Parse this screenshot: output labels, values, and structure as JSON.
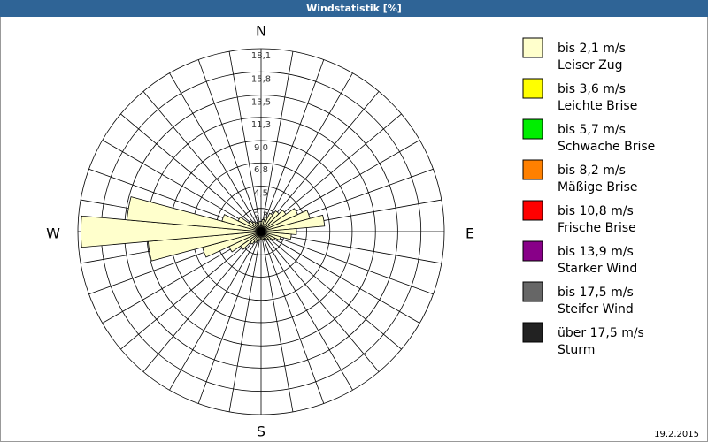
{
  "chart_data": {
    "type": "windrose",
    "title": "Windstatistik [%]",
    "directions": {
      "N": "N",
      "E": "E",
      "S": "S",
      "W": "W"
    },
    "x": [
      0,
      10,
      20,
      30,
      40,
      50,
      60,
      70,
      80,
      90,
      100,
      110,
      120,
      130,
      140,
      150,
      160,
      170,
      180,
      190,
      200,
      210,
      220,
      230,
      240,
      250,
      260,
      270,
      280,
      290,
      300,
      310,
      320,
      330,
      340,
      350
    ],
    "series": [
      {
        "name": "bis 2,1 m/s",
        "color": "#ffffcc",
        "values": [
          1.0,
          1.2,
          1.5,
          2.0,
          2.5,
          3.0,
          4.0,
          5.0,
          6.3,
          3.5,
          3.0,
          2.0,
          1.5,
          1.2,
          1.0,
          0.8,
          0.8,
          0.8,
          0.8,
          0.8,
          1.0,
          1.2,
          1.5,
          2.5,
          3.5,
          6.0,
          11.2,
          17.8,
          13.3,
          4.0,
          2.5,
          1.5,
          1.2,
          1.0,
          1.0,
          1.0
        ]
      }
    ],
    "legend": [
      {
        "range": "bis 2,1 m/s",
        "name": "Leiser Zug",
        "color": "#ffffcc"
      },
      {
        "range": "bis 3,6 m/s",
        "name": "Leichte Brise",
        "color": "#ffff00"
      },
      {
        "range": "bis 5,7 m/s",
        "name": "Schwache Brise",
        "color": "#00ee00"
      },
      {
        "range": "bis 8,2 m/s",
        "name": "Mäßige Brise",
        "color": "#ff8000"
      },
      {
        "range": "bis 10,8 m/s",
        "name": "Frische Brise",
        "color": "#ff0000"
      },
      {
        "range": "bis 13,9 m/s",
        "name": "Starker Wind",
        "color": "#880088"
      },
      {
        "range": "bis 17,5 m/s",
        "name": "Steifer Wind",
        "color": "#666666"
      },
      {
        "range": "über 17,5 m/s",
        "name": "Sturm",
        "color": "#222222"
      }
    ],
    "ylim": [
      0,
      18.1
    ],
    "yticks": [
      {
        "value": 2.3,
        "label": "2,3"
      },
      {
        "value": 4.5,
        "label": "4,5"
      },
      {
        "value": 6.8,
        "label": "6,8"
      },
      {
        "value": 9.0,
        "label": "9,0"
      },
      {
        "value": 11.3,
        "label": "11,3"
      },
      {
        "value": 13.5,
        "label": "13,5"
      },
      {
        "value": 15.8,
        "label": "15,8"
      },
      {
        "value": 18.1,
        "label": "18,1"
      }
    ],
    "date": "19.2.2015"
  }
}
